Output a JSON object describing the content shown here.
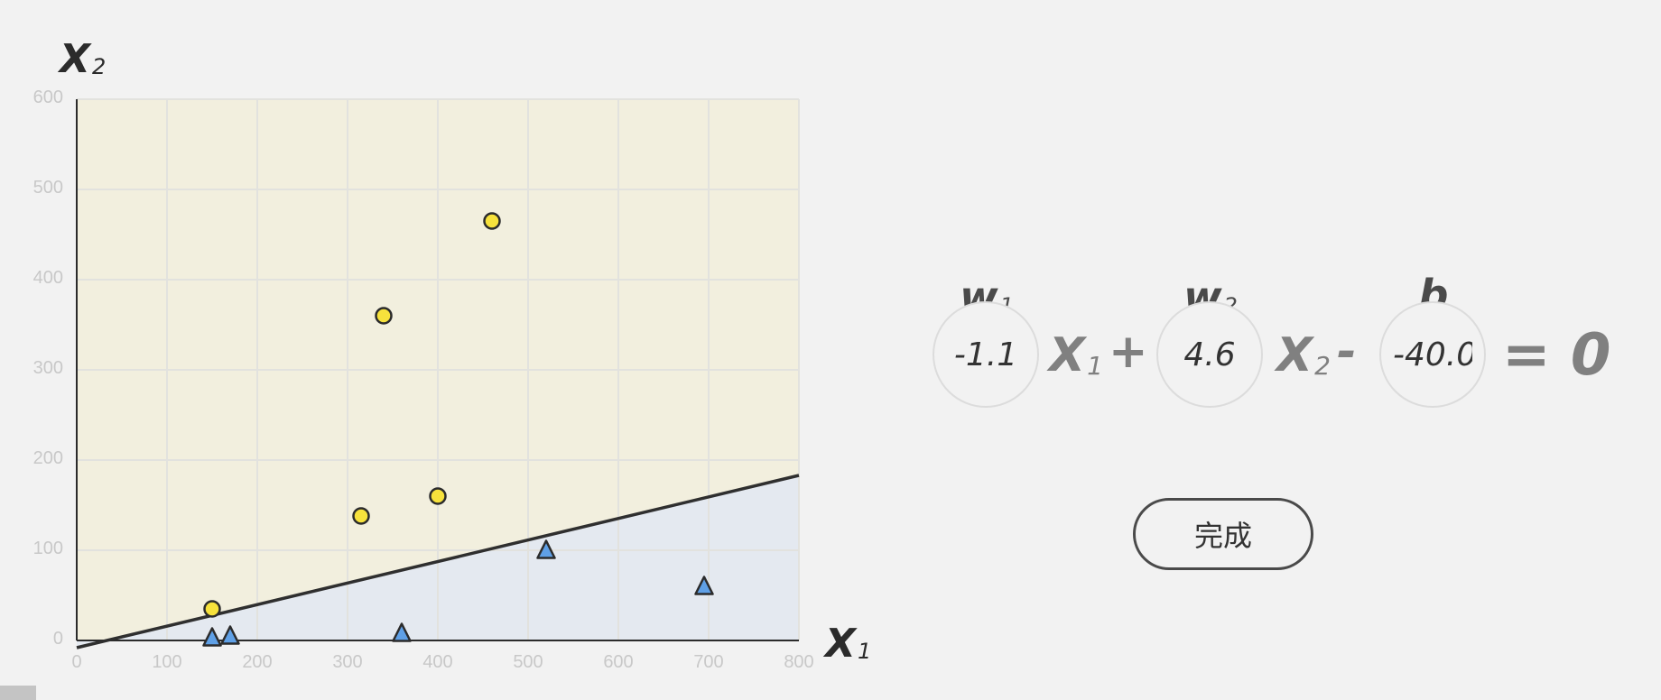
{
  "chart_data": {
    "type": "scatter",
    "xlabel": "X",
    "xlabel_sub": "1",
    "ylabel": "X",
    "ylabel_sub": "2",
    "xlim": [
      0,
      800
    ],
    "ylim": [
      0,
      600
    ],
    "xticks": [
      "0",
      "100",
      "200",
      "300",
      "400",
      "500",
      "600",
      "700",
      "800"
    ],
    "yticks": [
      "0",
      "100",
      "200",
      "300",
      "400",
      "500",
      "600"
    ],
    "grid": true,
    "series": [
      {
        "shape": "circle",
        "color": "#f7e23c",
        "points": [
          [
            150,
            35
          ],
          [
            315,
            138
          ],
          [
            400,
            160
          ],
          [
            340,
            360
          ],
          [
            460,
            465
          ]
        ]
      },
      {
        "shape": "triangle",
        "color": "#5fa0e6",
        "points": [
          [
            150,
            3
          ],
          [
            170,
            5
          ],
          [
            360,
            8
          ],
          [
            520,
            100
          ],
          [
            695,
            60
          ]
        ]
      }
    ],
    "boundary": {
      "x": [
        0,
        800
      ],
      "y": [
        -8,
        183
      ]
    },
    "region_colors": {
      "above": "#f2efde",
      "below": "#e4e9f0"
    }
  },
  "equation": {
    "w1_label": "w",
    "w1_sub": "1",
    "w2_label": "w",
    "w2_sub": "2",
    "b_label": "b",
    "w1_value": "-1.1",
    "w2_value": "4.6",
    "b_value": "-40.0",
    "x1": "X",
    "x1_sub": "1",
    "x2": "X",
    "x2_sub": "2",
    "plus": "+",
    "minus": "-",
    "equals": "= 0"
  },
  "done_button": "完成"
}
